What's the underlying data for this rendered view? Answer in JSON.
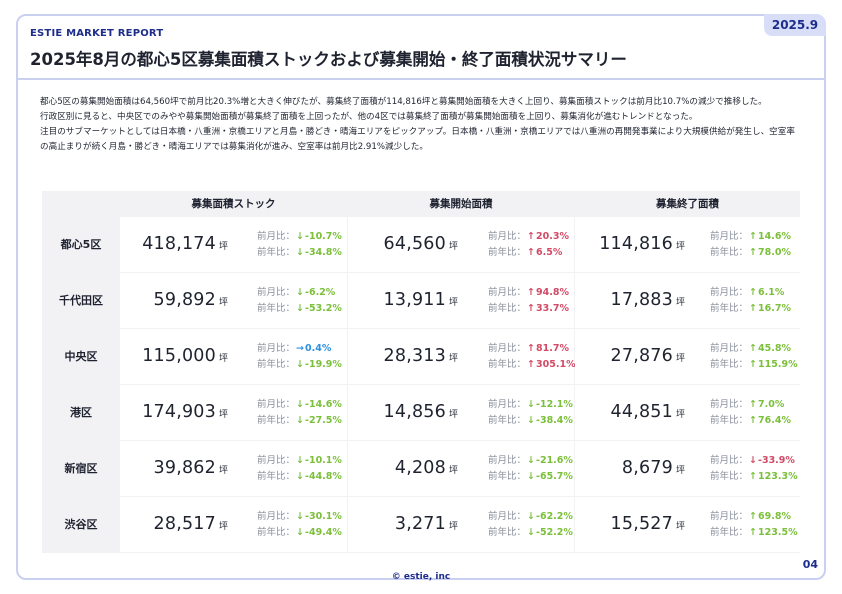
{
  "brand": "ESTIE MARKET REPORT",
  "date_badge": "2025.9",
  "title": "2025年8月の都心5区募集面積ストックおよび募集開始・終了面積状況サマリー",
  "summary": [
    "都心5区の募集開始面積は64,560坪で前月比20.3%増と大きく伸びたが、募集終了面積が114,816坪と募集開始面積を大きく上回り、募集面積ストックは前月比10.7%の減少で推移した。",
    "行政区別に見ると、中央区でのみやや募集開始面積が募集終了面積を上回ったが、他の4区では募集終了面積が募集開始面積を上回り、募集消化が進むトレンドとなった。",
    "注目のサブマーケットとしては日本橋・八重洲・京橋エリアと月島・勝どき・晴海エリアをピックアップ。日本橋・八重洲・京橋エリアでは八重洲の再開発事業により大規模供給が発生し、空室率の高止まりが続く月島・勝どき・晴海エリアでは募集消化が進み、空室率は前月比2.91%減少した。"
  ],
  "table": {
    "columns": [
      "募集面積ストック",
      "募集開始面積",
      "募集終了面積"
    ],
    "mom_label": "前月比：",
    "yoy_label": "前年比：",
    "unit": "坪",
    "rows": [
      {
        "label": "都心5区",
        "cells": [
          {
            "value": "418,174",
            "mom": "-10.7%",
            "mom_dir": "down",
            "yoy": "-34.8%",
            "yoy_dir": "down"
          },
          {
            "value": "64,560",
            "mom": "20.3%",
            "mom_dir": "up-red",
            "yoy": "6.5%",
            "yoy_dir": "up-red"
          },
          {
            "value": "114,816",
            "mom": "14.6%",
            "mom_dir": "up-green",
            "yoy": "78.0%",
            "yoy_dir": "up-green"
          }
        ]
      },
      {
        "label": "千代田区",
        "cells": [
          {
            "value": "59,892",
            "mom": "-6.2%",
            "mom_dir": "down",
            "yoy": "-53.2%",
            "yoy_dir": "down"
          },
          {
            "value": "13,911",
            "mom": "94.8%",
            "mom_dir": "up-red",
            "yoy": "33.7%",
            "yoy_dir": "up-red"
          },
          {
            "value": "17,883",
            "mom": "6.1%",
            "mom_dir": "up-green",
            "yoy": "16.7%",
            "yoy_dir": "up-green"
          }
        ]
      },
      {
        "label": "中央区",
        "cells": [
          {
            "value": "115,000",
            "mom": "0.4%",
            "mom_dir": "side",
            "yoy": "-19.9%",
            "yoy_dir": "down"
          },
          {
            "value": "28,313",
            "mom": "81.7%",
            "mom_dir": "up-red",
            "yoy": "305.1%",
            "yoy_dir": "up-red"
          },
          {
            "value": "27,876",
            "mom": "45.8%",
            "mom_dir": "up-green",
            "yoy": "115.9%",
            "yoy_dir": "up-green"
          }
        ]
      },
      {
        "label": "港区",
        "cells": [
          {
            "value": "174,903",
            "mom": "-14.6%",
            "mom_dir": "down",
            "yoy": "-27.5%",
            "yoy_dir": "down"
          },
          {
            "value": "14,856",
            "mom": "-12.1%",
            "mom_dir": "down",
            "yoy": "-38.4%",
            "yoy_dir": "down"
          },
          {
            "value": "44,851",
            "mom": "7.0%",
            "mom_dir": "up-green",
            "yoy": "76.4%",
            "yoy_dir": "up-green"
          }
        ]
      },
      {
        "label": "新宿区",
        "cells": [
          {
            "value": "39,862",
            "mom": "-10.1%",
            "mom_dir": "down",
            "yoy": "-44.8%",
            "yoy_dir": "down"
          },
          {
            "value": "4,208",
            "mom": "-21.6%",
            "mom_dir": "down",
            "yoy": "-65.7%",
            "yoy_dir": "down"
          },
          {
            "value": "8,679",
            "mom": "-33.9%",
            "mom_dir": "down-red",
            "yoy": "123.3%",
            "yoy_dir": "up-green"
          }
        ]
      },
      {
        "label": "渋谷区",
        "cells": [
          {
            "value": "28,517",
            "mom": "-30.1%",
            "mom_dir": "down",
            "yoy": "-49.4%",
            "yoy_dir": "down"
          },
          {
            "value": "3,271",
            "mom": "-62.2%",
            "mom_dir": "down",
            "yoy": "-52.2%",
            "yoy_dir": "down"
          },
          {
            "value": "15,527",
            "mom": "69.8%",
            "mom_dir": "up-green",
            "yoy": "123.5%",
            "yoy_dir": "up-green"
          }
        ]
      }
    ]
  },
  "footer": "© estie, inc",
  "page_number": "04",
  "colors": {
    "accent": "#1d2d8c",
    "frame": "#c9d0f0",
    "green": "#7bbf3a",
    "red": "#d24a65",
    "blue": "#2e8fe0"
  }
}
